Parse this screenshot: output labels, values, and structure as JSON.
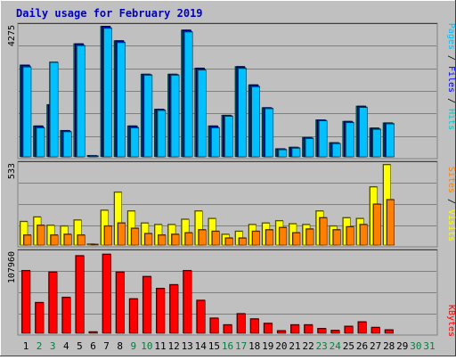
{
  "title": "Daily usage for February 2019",
  "colors": {
    "background": "#c0c0c0",
    "title_text": "#0000c0",
    "grid": "#808080",
    "hits": "#00cccc",
    "files": "#0000ff",
    "pages": "#00c0ff",
    "visits": "#ffff00",
    "sites": "#ff8000",
    "kbytes": "#ff0000",
    "weekday_label": "#000000",
    "weekend_label": "#008040"
  },
  "side_labels": {
    "top": [
      "Pages",
      "Files",
      "Hits"
    ],
    "middle": [
      "Sites",
      "Visits"
    ],
    "bottom": [
      "KBytes"
    ]
  },
  "chart_data": [
    {
      "type": "bar",
      "name": "hits-files-pages",
      "ymax_label": "4275",
      "ylim": [
        0,
        4275
      ],
      "categories": [
        "1",
        "2",
        "3",
        "4",
        "5",
        "6",
        "7",
        "8",
        "9",
        "10",
        "11",
        "12",
        "13",
        "14",
        "15",
        "16",
        "17",
        "18",
        "19",
        "20",
        "21",
        "22",
        "23",
        "24",
        "25",
        "26",
        "27",
        "28",
        "29",
        "30",
        "31"
      ],
      "weekend": [
        false,
        true,
        true,
        false,
        false,
        false,
        false,
        false,
        true,
        true,
        false,
        false,
        false,
        false,
        false,
        true,
        true,
        false,
        false,
        false,
        false,
        false,
        true,
        true,
        false,
        false,
        false,
        false,
        false,
        true,
        true
      ],
      "series": [
        {
          "name": "Hits",
          "values": [
            3000,
            1000,
            1700,
            850,
            3700,
            30,
            4275,
            3800,
            1000,
            2700,
            1550,
            2700,
            4150,
            2900,
            1000,
            1350,
            2950,
            2350,
            1600,
            250,
            300,
            620,
            1200,
            450,
            1150,
            1650,
            930,
            1100,
            0,
            0,
            0
          ]
        },
        {
          "name": "Files",
          "values": [
            3000,
            1000,
            1700,
            850,
            3700,
            30,
            4275,
            3800,
            1000,
            2700,
            1550,
            2700,
            4150,
            2900,
            1000,
            1350,
            2950,
            2350,
            1600,
            250,
            300,
            620,
            1200,
            450,
            1150,
            1650,
            930,
            1100,
            0,
            0,
            0
          ]
        },
        {
          "name": "Pages",
          "values": [
            2950,
            950,
            3100,
            820,
            3650,
            20,
            4220,
            3750,
            950,
            2680,
            1520,
            2680,
            4100,
            2850,
            950,
            1330,
            2900,
            2300,
            1580,
            230,
            280,
            600,
            1180,
            430,
            1120,
            1620,
            900,
            1080,
            0,
            0,
            0
          ]
        }
      ]
    },
    {
      "type": "bar",
      "name": "visits-sites",
      "ymax_label": "533",
      "ylim": [
        0,
        533
      ],
      "categories": [
        "1",
        "2",
        "3",
        "4",
        "5",
        "6",
        "7",
        "8",
        "9",
        "10",
        "11",
        "12",
        "13",
        "14",
        "15",
        "16",
        "17",
        "18",
        "19",
        "20",
        "21",
        "22",
        "23",
        "24",
        "25",
        "26",
        "27",
        "28",
        "29",
        "30",
        "31"
      ],
      "series": [
        {
          "name": "Visits",
          "values": [
            155,
            185,
            130,
            125,
            165,
            5,
            230,
            350,
            225,
            145,
            135,
            135,
            170,
            225,
            175,
            70,
            90,
            135,
            145,
            160,
            140,
            135,
            225,
            125,
            180,
            175,
            385,
            533,
            0,
            0,
            0
          ]
        },
        {
          "name": "Sites",
          "values": [
            65,
            130,
            65,
            70,
            65,
            3,
            125,
            145,
            110,
            75,
            65,
            70,
            80,
            100,
            90,
            45,
            45,
            90,
            100,
            115,
            80,
            105,
            180,
            100,
            120,
            135,
            270,
            300,
            0,
            0,
            0
          ]
        }
      ]
    },
    {
      "type": "bar",
      "name": "kbytes",
      "ymax_label": "107960",
      "ylim": [
        0,
        107960
      ],
      "categories": [
        "1",
        "2",
        "3",
        "4",
        "5",
        "6",
        "7",
        "8",
        "9",
        "10",
        "11",
        "12",
        "13",
        "14",
        "15",
        "16",
        "17",
        "18",
        "19",
        "20",
        "21",
        "22",
        "23",
        "24",
        "25",
        "26",
        "27",
        "28",
        "29",
        "30",
        "31"
      ],
      "series": [
        {
          "name": "KBytes",
          "values": [
            84000,
            41000,
            82000,
            48000,
            104000,
            1500,
            106000,
            82000,
            46000,
            76000,
            60000,
            65000,
            84000,
            44000,
            20000,
            11000,
            26000,
            19000,
            13000,
            3000,
            11000,
            11000,
            6000,
            3500,
            9000,
            15000,
            7500,
            4200,
            0,
            0,
            0
          ]
        }
      ]
    }
  ]
}
